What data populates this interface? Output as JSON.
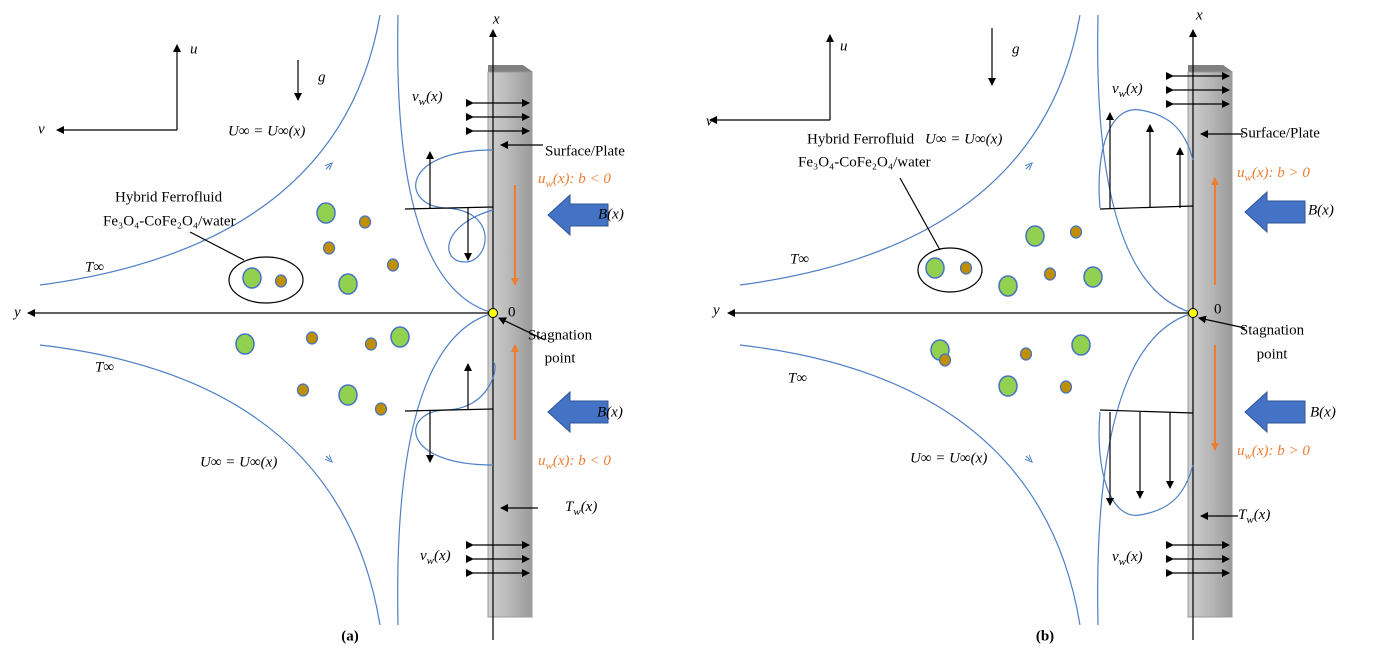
{
  "panels": [
    {
      "caption": "(a)",
      "labels": {
        "x_axis": "x",
        "y_axis": "y",
        "u_axis": "u",
        "v_axis": "v",
        "gravity": "g",
        "suction_top": [
          "v",
          "w",
          "(x)"
        ],
        "free_stream_top": "U∞ = U∞(x)",
        "surface": "Surface/Plate",
        "wall_velocity_top": [
          "u",
          "w",
          "(x): b < 0"
        ],
        "fluid_name": "Hybrid Ferrofluid",
        "fluid_formula": "Fe₃O₄-CoFe₂O₄/water",
        "field_top": "B(x)",
        "ambient_top": "T∞",
        "origin": "0",
        "stagnation_1": "Stagnation",
        "stagnation_2": "point",
        "ambient_bottom": "T∞",
        "field_bottom": "B(x)",
        "wall_velocity_bottom": [
          "u",
          "w",
          "(x): b < 0"
        ],
        "free_stream_bottom": "U∞ = U∞(x)",
        "wall_temperature": [
          "T",
          "w",
          "(x)"
        ],
        "suction_bottom": [
          "v",
          "w",
          "(x)"
        ]
      }
    },
    {
      "caption": "(b)",
      "labels": {
        "x_axis": "x",
        "y_axis": "y",
        "u_axis": "u",
        "v_axis": "v",
        "gravity": "g",
        "suction_top": [
          "v",
          "w",
          "(x)"
        ],
        "free_stream_top": "U∞ = U∞(x)",
        "surface": "Surface/Plate",
        "wall_velocity_top": [
          "u",
          "w",
          "(x): b > 0"
        ],
        "fluid_name": "Hybrid Ferrofluid",
        "fluid_formula": "Fe₃O₄-CoFe₂O₄/water",
        "field_top": "B(x)",
        "ambient_top": "T∞",
        "origin": "0",
        "stagnation_1": "Stagnation",
        "stagnation_2": "point",
        "ambient_bottom": "T∞",
        "field_bottom": "B(x)",
        "wall_velocity_bottom": [
          "u",
          "w",
          "(x): b > 0"
        ],
        "free_stream_bottom": "U∞ = U∞(x)",
        "wall_temperature": [
          "T",
          "w",
          "(x)"
        ],
        "suction_bottom": [
          "v",
          "w",
          "(x)"
        ]
      }
    }
  ]
}
